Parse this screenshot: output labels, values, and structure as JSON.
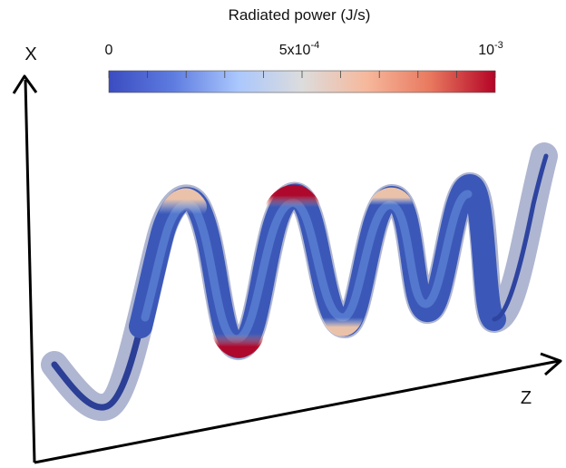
{
  "colorbar": {
    "title": "Radiated power (J/s)",
    "ticks": [
      {
        "base": "0",
        "exp": ""
      },
      {
        "base": "5x10",
        "exp": "-4"
      },
      {
        "base": "10",
        "exp": "-3"
      }
    ],
    "colors": [
      "#3b4cc0",
      "#5e7ce0",
      "#aac7fd",
      "#dcdcdc",
      "#f6b89c",
      "#e8785e",
      "#b40426"
    ]
  },
  "axes": {
    "x_label": "X",
    "z_label": "Z"
  }
}
